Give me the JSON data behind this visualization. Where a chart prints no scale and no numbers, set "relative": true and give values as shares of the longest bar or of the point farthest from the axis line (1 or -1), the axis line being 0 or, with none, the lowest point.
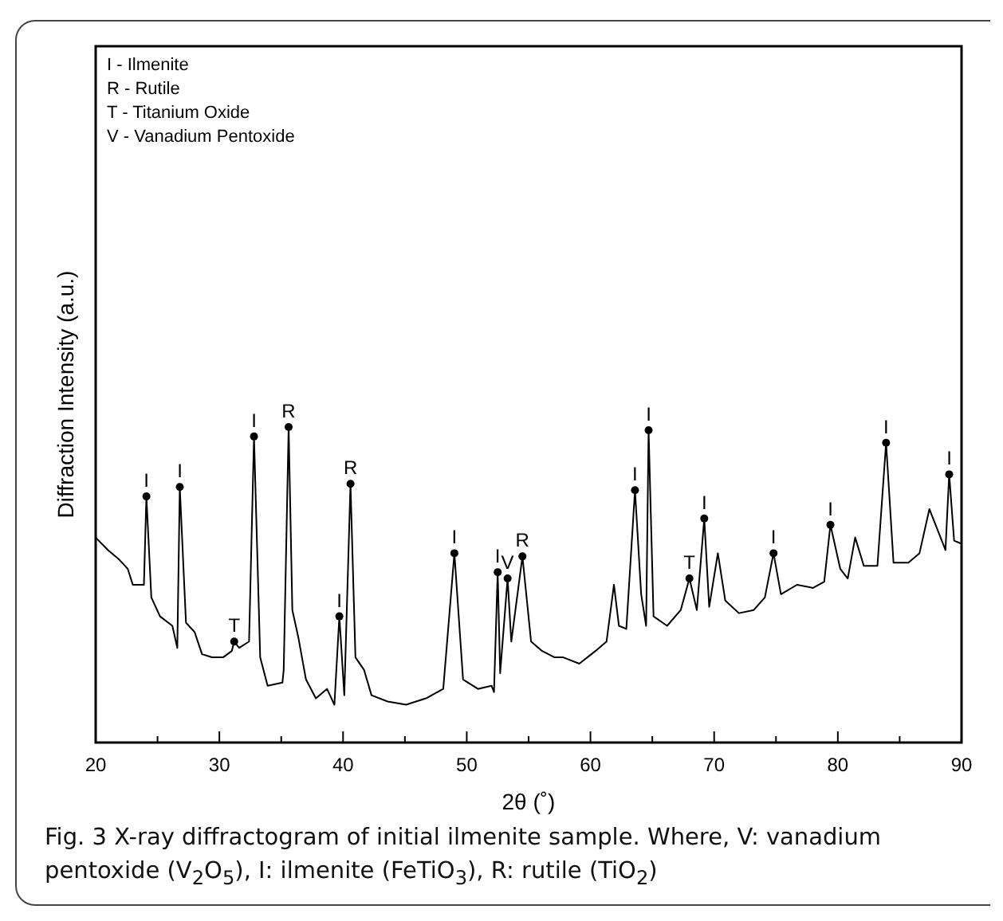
{
  "chart_data": {
    "type": "line",
    "relative": true,
    "xlabel": "2θ (˚)",
    "ylabel": "Diffraction Intensity (a.u.)",
    "color": "#000000",
    "grid": false,
    "marker": "none",
    "line_style": "solid",
    "tick_labels": "x",
    "xlim": [
      20,
      90
    ],
    "xticks": [
      20,
      {
        "value": 25,
        "label": null
      },
      30,
      {
        "value": 35,
        "label": null
      },
      40,
      {
        "value": 45,
        "label": null
      },
      50,
      {
        "value": 55,
        "label": null
      },
      60,
      {
        "value": 65,
        "label": null
      },
      70,
      {
        "value": 75,
        "label": null
      },
      80,
      {
        "value": 85,
        "label": null
      },
      90
    ],
    "x": [
      20.0,
      21.0,
      21.9,
      22.6,
      23.0,
      23.9,
      24.1,
      24.5,
      25.2,
      26.2,
      26.6,
      26.8,
      27.3,
      28.0,
      28.6,
      29.4,
      30.3,
      31.0,
      31.2,
      31.6,
      32.4,
      32.8,
      33.3,
      33.9,
      35.1,
      35.2,
      35.6,
      35.9,
      36.4,
      37.0,
      37.8,
      38.7,
      39.3,
      39.7,
      40.1,
      40.6,
      41.0,
      41.7,
      42.3,
      43.6,
      45.1,
      46.7,
      48.1,
      49.0,
      49.7,
      50.9,
      52.0,
      52.2,
      52.5,
      52.7,
      53.3,
      53.6,
      54.5,
      55.2,
      56.1,
      57.1,
      57.8,
      59.1,
      60.4,
      61.3,
      61.9,
      62.3,
      62.9,
      63.6,
      64.1,
      64.5,
      64.7,
      65.1,
      66.2,
      67.3,
      68.0,
      68.6,
      69.2,
      69.6,
      70.3,
      70.9,
      72.0,
      73.2,
      74.1,
      74.8,
      75.4,
      76.7,
      78.0,
      78.9,
      79.4,
      80.2,
      80.8,
      81.4,
      82.1,
      83.2,
      83.9,
      84.5,
      85.7,
      86.6,
      87.4,
      88.0,
      88.7,
      89.0,
      89.4,
      90.0
    ],
    "values": [
      0.65,
      0.61,
      0.58,
      0.55,
      0.5,
      0.5,
      0.78,
      0.46,
      0.4,
      0.37,
      0.3,
      0.81,
      0.38,
      0.35,
      0.28,
      0.27,
      0.27,
      0.29,
      0.32,
      0.3,
      0.32,
      0.97,
      0.27,
      0.18,
      0.19,
      0.23,
      1.0,
      0.42,
      0.33,
      0.2,
      0.14,
      0.17,
      0.12,
      0.4,
      0.15,
      0.82,
      0.27,
      0.23,
      0.15,
      0.13,
      0.12,
      0.14,
      0.17,
      0.6,
      0.2,
      0.17,
      0.18,
      0.16,
      0.54,
      0.22,
      0.52,
      0.32,
      0.59,
      0.32,
      0.29,
      0.27,
      0.27,
      0.25,
      0.29,
      0.32,
      0.5,
      0.37,
      0.36,
      0.8,
      0.47,
      0.37,
      0.99,
      0.4,
      0.37,
      0.42,
      0.52,
      0.42,
      0.71,
      0.43,
      0.6,
      0.45,
      0.41,
      0.42,
      0.46,
      0.6,
      0.47,
      0.5,
      0.49,
      0.51,
      0.69,
      0.55,
      0.52,
      0.65,
      0.56,
      0.56,
      0.95,
      0.57,
      0.57,
      0.6,
      0.74,
      0.68,
      0.61,
      0.85,
      0.64,
      0.63
    ],
    "annotations": [
      "I - Ilmenite",
      "R - Rutile",
      "T - Titanium Oxide",
      "V - Vanadium Pentoxide",
      {
        "text": "I",
        "x": 24.1,
        "y": 0.78
      },
      {
        "text": "I",
        "x": 26.8,
        "y": 0.81
      },
      {
        "text": "T",
        "x": 31.2,
        "y": 0.32
      },
      {
        "text": "I",
        "x": 32.8,
        "y": 0.97
      },
      {
        "text": "R",
        "x": 35.6,
        "y": 1.0
      },
      {
        "text": "I",
        "x": 39.7,
        "y": 0.4
      },
      {
        "text": "R",
        "x": 40.6,
        "y": 0.82
      },
      {
        "text": "I",
        "x": 49.0,
        "y": 0.6
      },
      {
        "text": "I",
        "x": 52.5,
        "y": 0.54
      },
      {
        "text": "V",
        "x": 53.3,
        "y": 0.52
      },
      {
        "text": "R",
        "x": 54.5,
        "y": 0.59
      },
      {
        "text": "I",
        "x": 63.6,
        "y": 0.8
      },
      {
        "text": "I",
        "x": 64.7,
        "y": 0.99
      },
      {
        "text": "T",
        "x": 68.0,
        "y": 0.52
      },
      {
        "text": "I",
        "x": 69.2,
        "y": 0.71
      },
      {
        "text": "I",
        "x": 74.8,
        "y": 0.6
      },
      {
        "text": "I",
        "x": 79.4,
        "y": 0.69
      },
      {
        "text": "I",
        "x": 83.9,
        "y": 0.95
      },
      {
        "text": "I",
        "x": 89.0,
        "y": 0.85
      },
      "Fig. 3  X-ray diffractogram of initial ilmenite sample. Where, V: vanadium pentoxide (V$_{2}$O$_{5}$), I: ilmenite (FeTiO$_{3}$), R: rutile (TiO$_{2}$)"
    ]
  }
}
